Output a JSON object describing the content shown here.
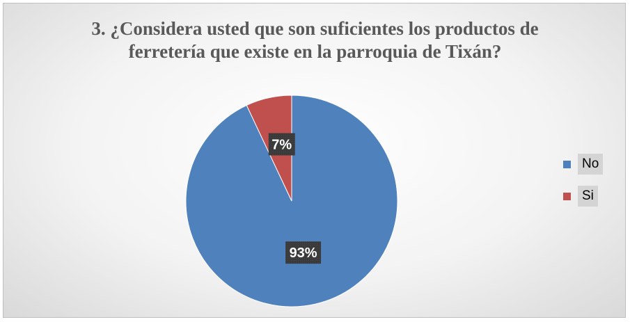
{
  "chart_data": {
    "type": "pie",
    "title_lines": [
      "3. ¿Considera usted que son suficientes los productos de",
      "ferretería que existe en la parroquia de Tixán?"
    ],
    "slices": [
      {
        "name": "No",
        "value": 93,
        "label": "93%",
        "color": "#4f81bd"
      },
      {
        "name": "Si",
        "value": 7,
        "label": "7%",
        "color": "#c0504d"
      }
    ],
    "legend_position": "right"
  }
}
